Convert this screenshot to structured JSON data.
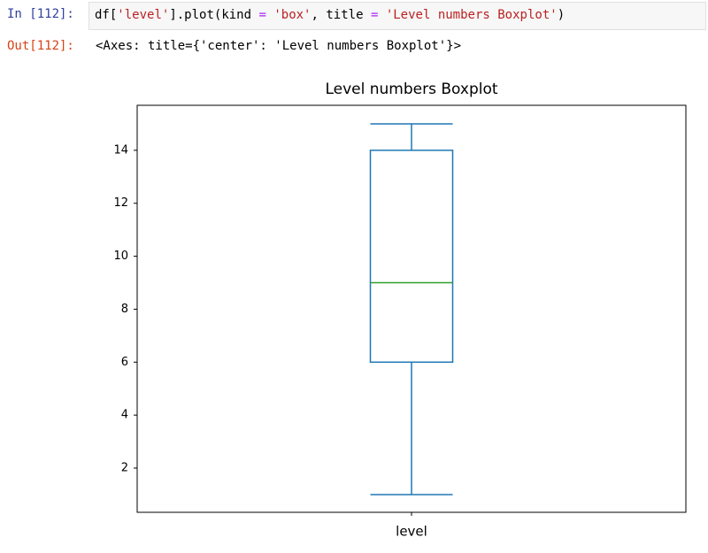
{
  "cell": {
    "in_prompt": "In [112]:",
    "out_prompt": "Out[112]:",
    "code": [
      {
        "text": "df[",
        "color": "#000000"
      },
      {
        "text": "'level'",
        "color": "#ba2121"
      },
      {
        "text": "].plot(kind ",
        "color": "#000000"
      },
      {
        "text": "=",
        "color": "#aa22ff"
      },
      {
        "text": " ",
        "color": "#000000"
      },
      {
        "text": "'box'",
        "color": "#ba2121"
      },
      {
        "text": ", title ",
        "color": "#000000"
      },
      {
        "text": "=",
        "color": "#aa22ff"
      },
      {
        "text": " ",
        "color": "#000000"
      },
      {
        "text": "'Level numbers Boxplot'",
        "color": "#ba2121"
      },
      {
        "text": ")",
        "color": "#000000"
      }
    ],
    "output": "<Axes: title={'center': 'Level numbers Boxplot'}>"
  },
  "chart_data": {
    "type": "box",
    "title": "Level numbers Boxplot",
    "categories": [
      "level"
    ],
    "boxes": [
      {
        "min": 1,
        "q1": 6,
        "median": 9,
        "q3": 14,
        "max": 15
      }
    ],
    "color": "#1f77b4",
    "median_color": "#2ca02c",
    "ylim": [
      0.33,
      15.7
    ],
    "yticks": [
      2,
      4,
      6,
      8,
      10,
      12,
      14
    ],
    "grid": false
  }
}
